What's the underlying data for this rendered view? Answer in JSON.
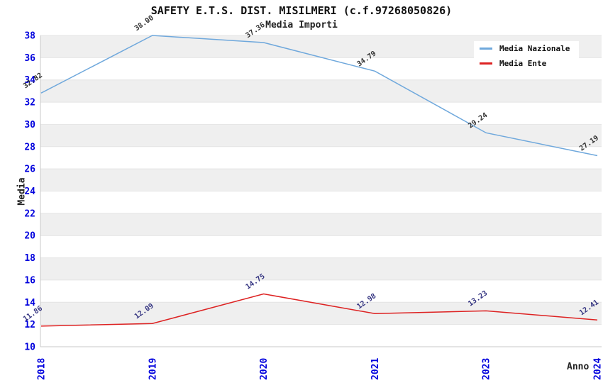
{
  "header": {
    "title": "SAFETY E.T.S. DIST. MISILMERI (c.f.97268050826)",
    "subtitle": "Media Importi"
  },
  "chart_data": {
    "type": "line",
    "title": "SAFETY E.T.S. DIST. MISILMERI (c.f.97268050826)",
    "subtitle": "Media Importi",
    "xlabel": "Anno",
    "ylabel": "Media",
    "categories": [
      "2018",
      "2019",
      "2020",
      "2021",
      "2023",
      "2024"
    ],
    "series": [
      {
        "name": "Media Nazionale",
        "color": "#6fa8dc",
        "label_color": "#333333",
        "values": [
          32.82,
          38.0,
          37.36,
          34.79,
          29.24,
          27.19
        ],
        "labels": [
          "32.82",
          "38.00",
          "37.36",
          "34.79",
          "29.24",
          "27.19"
        ]
      },
      {
        "name": "Media Ente",
        "color": "#dd2222",
        "label_color": "#333380",
        "values": [
          11.86,
          12.09,
          14.75,
          12.98,
          13.23,
          12.41
        ],
        "labels": [
          "11.86",
          "12.09",
          "14.75",
          "12.98",
          "13.23",
          "12.41"
        ]
      }
    ],
    "ylim": [
      10,
      38
    ],
    "ytick_step": 2,
    "yticks": [
      "38",
      "36",
      "34",
      "32",
      "30",
      "28",
      "26",
      "24",
      "22",
      "20",
      "18",
      "16",
      "14",
      "12",
      "10"
    ],
    "grid": "horizontal-alternating-bands",
    "legend_position": "top-right",
    "colors": {
      "band": "#efefef",
      "gridline": "#e4e4e4",
      "spine": "#c8c8c8",
      "tick_text": "#0000dd"
    }
  }
}
